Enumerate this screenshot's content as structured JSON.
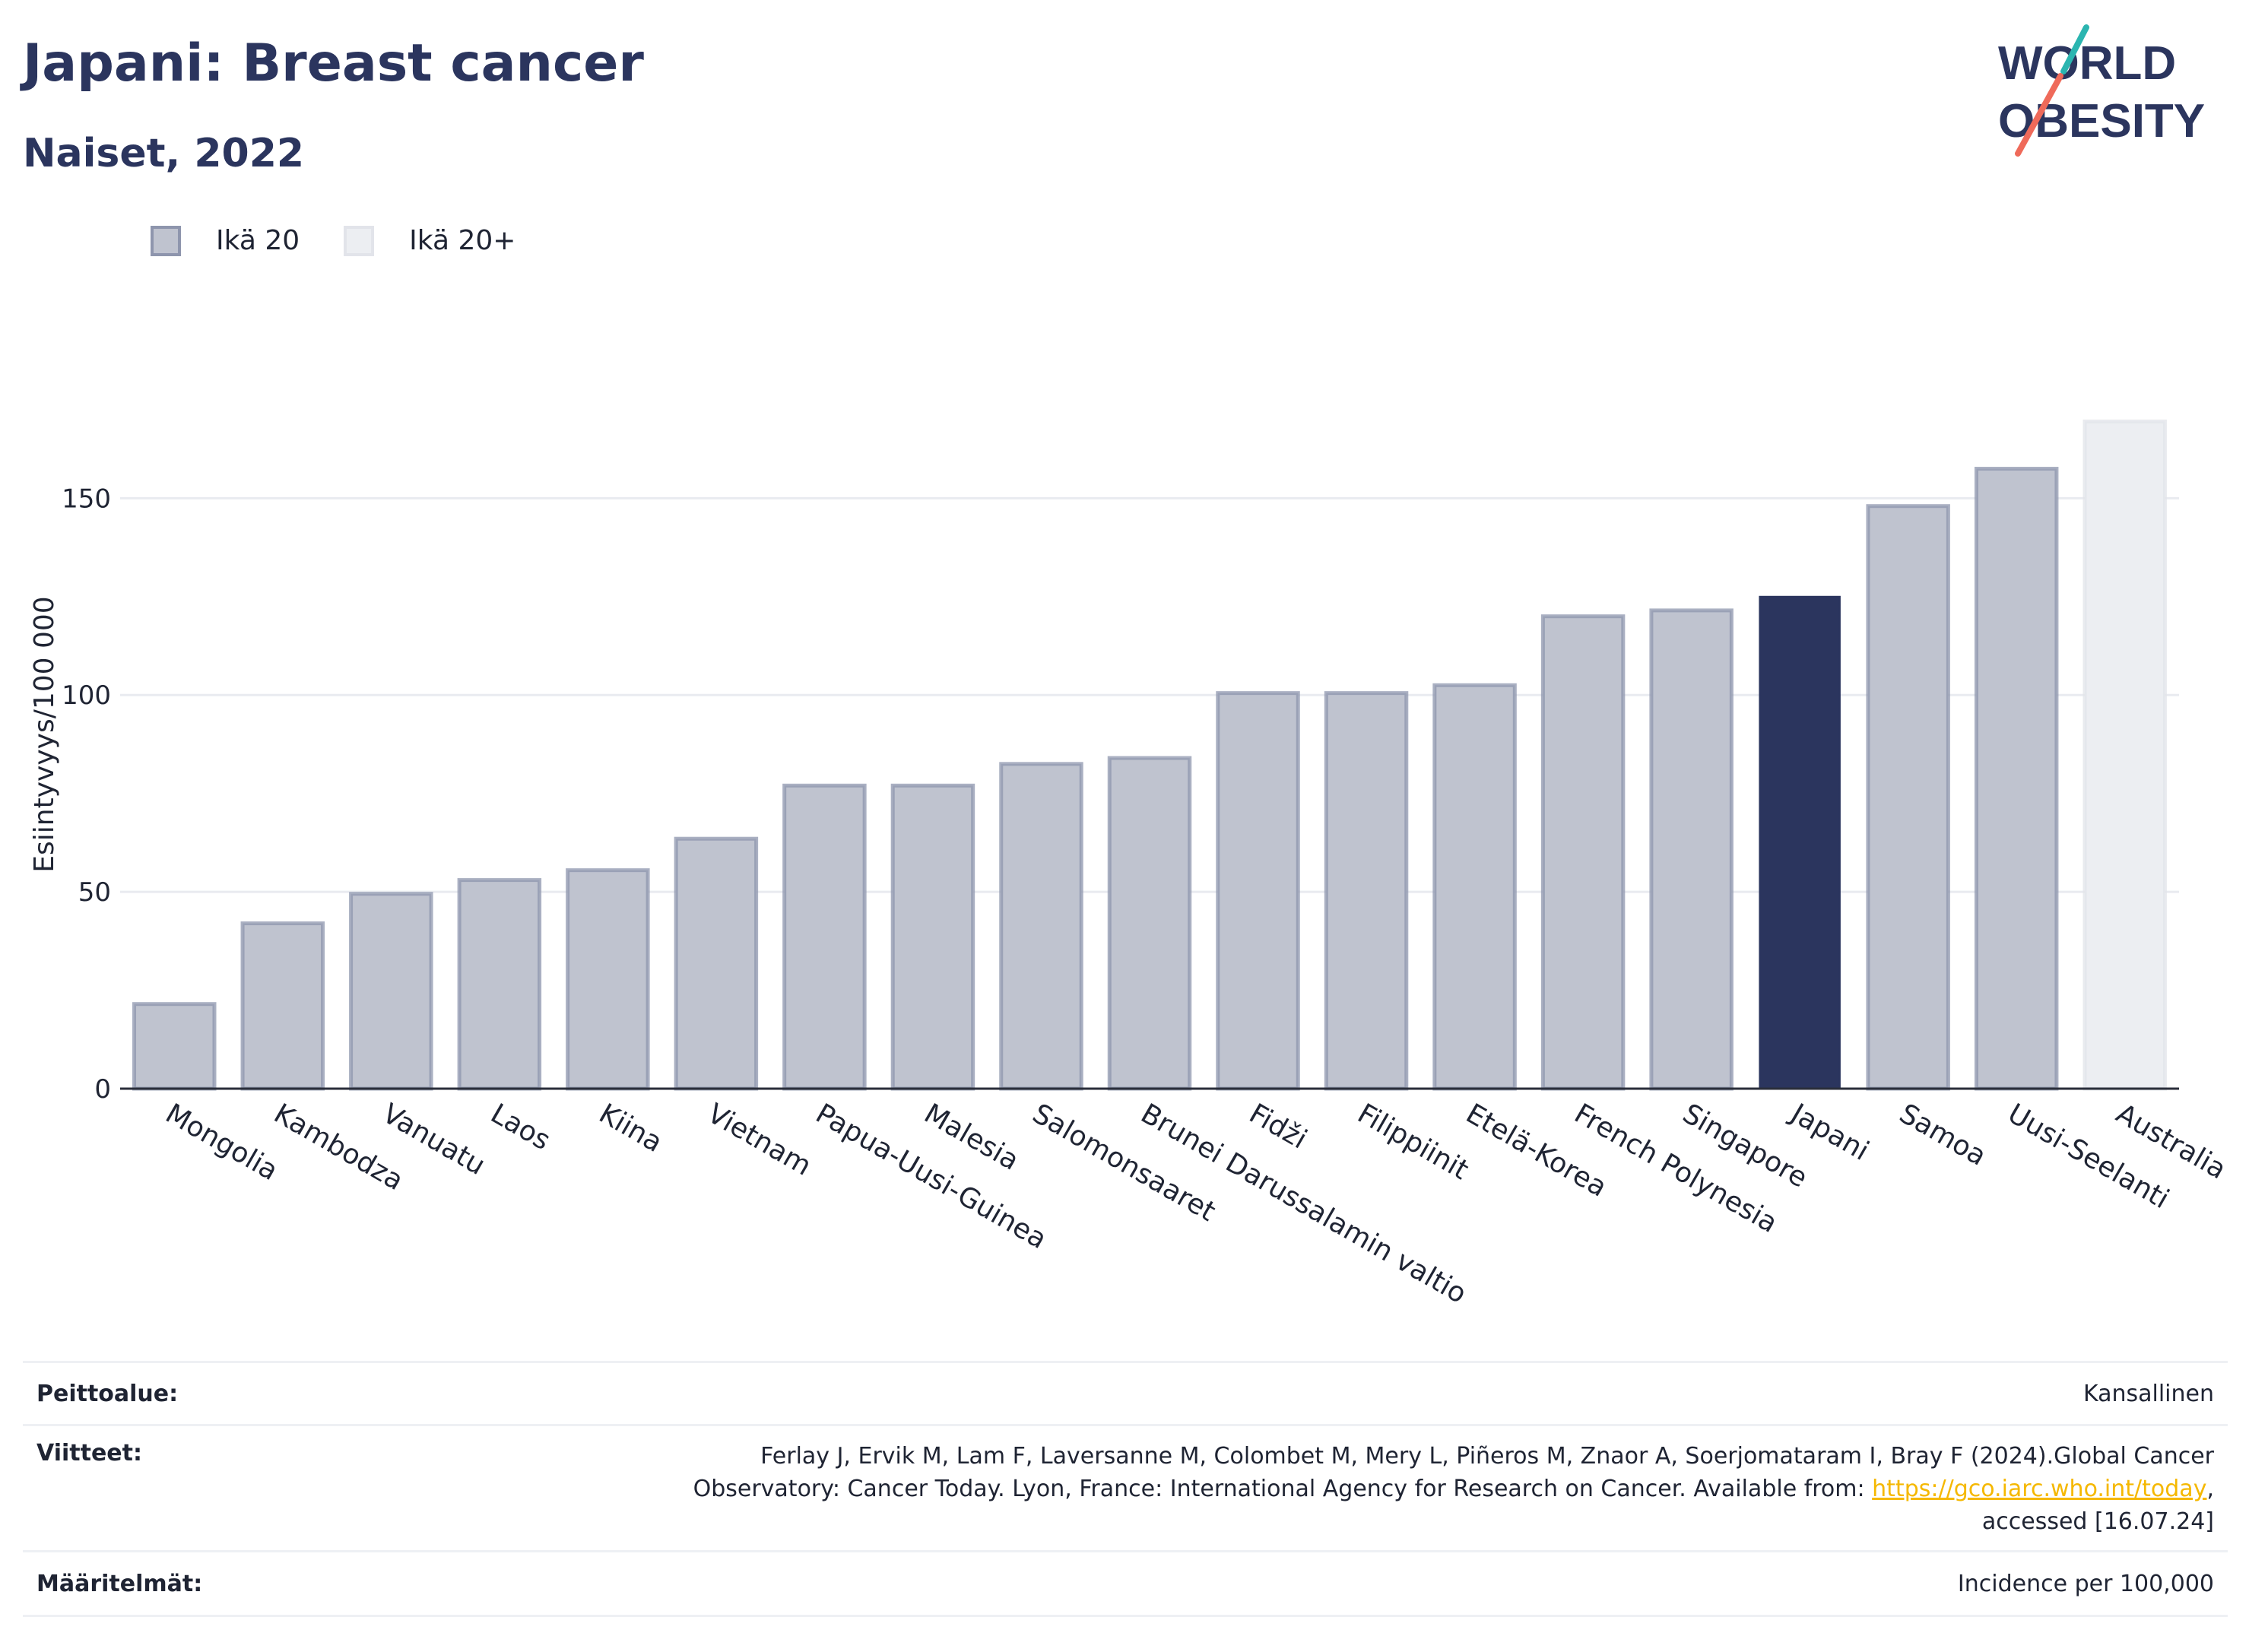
{
  "header": {
    "title": "Japani: Breast cancer",
    "subtitle": "Naiset, 2022"
  },
  "logo": {
    "line1": "WORLD",
    "line2": "OBESITY"
  },
  "legend": [
    {
      "label": "Ikä 20",
      "color": "#bfc3cf"
    },
    {
      "label": "Ikä 20+",
      "color": "#eceef2"
    }
  ],
  "colors": {
    "bar": "#bfc3cf",
    "bar_border": "#8e95ad",
    "highlight": "#2b355e",
    "australia": "#eceef2",
    "australia_border": "#e2e4ea",
    "logo_teal": "#2bb5b0",
    "logo_coral": "#ef6a5a"
  },
  "chart_data": {
    "type": "bar",
    "ylabel": "Esiintyvyys/100 000",
    "ylim": [
      0,
      180
    ],
    "yticks": [
      0,
      50,
      100,
      150
    ],
    "grid": true,
    "legend_placement": "top-left",
    "highlight": "Japani",
    "categories": [
      "Mongolia",
      "Kambodza",
      "Vanuatu",
      "Laos",
      "Kiina",
      "Vietnam",
      "Papua-Uusi-Guinea",
      "Malesia",
      "Salomonsaaret",
      "Brunei Darussalamin valtio",
      "Fidži",
      "Filippiinit",
      "Etelä-Korea",
      "French Polynesia",
      "Singapore",
      "Japani",
      "Samoa",
      "Uusi-Seelanti",
      "Australia"
    ],
    "series": [
      {
        "name": "Ikä 20",
        "values": [
          21.5,
          42,
          49.5,
          53,
          55.5,
          63.5,
          77,
          77,
          82.5,
          84,
          100.5,
          100.5,
          102.5,
          120,
          121.5,
          125,
          148,
          157.5,
          null
        ]
      },
      {
        "name": "Ikä 20+",
        "values": [
          null,
          null,
          null,
          null,
          null,
          null,
          null,
          null,
          null,
          null,
          null,
          null,
          null,
          null,
          null,
          null,
          null,
          null,
          169.5
        ]
      }
    ]
  },
  "footer": {
    "coverage_label": "Peittoalue:",
    "coverage_value": "Kansallinen",
    "references_label": "Viitteet:",
    "references_line1": "Ferlay J, Ervik M, Lam F, Laversanne M, Colombet M, Mery L, Piñeros M, Znaor A, Soerjomataram I, Bray F (2024).Global Cancer",
    "references_line2": "Observatory: Cancer Today. Lyon, France: International Agency for Research on Cancer. Available from: ",
    "references_link": "https://gco.iarc.who.int/today",
    "references_line2_end": ",",
    "references_line3": "accessed [16.07.24]",
    "definitions_label": "Määritelmät:",
    "definitions_value": "Incidence per 100,000"
  }
}
